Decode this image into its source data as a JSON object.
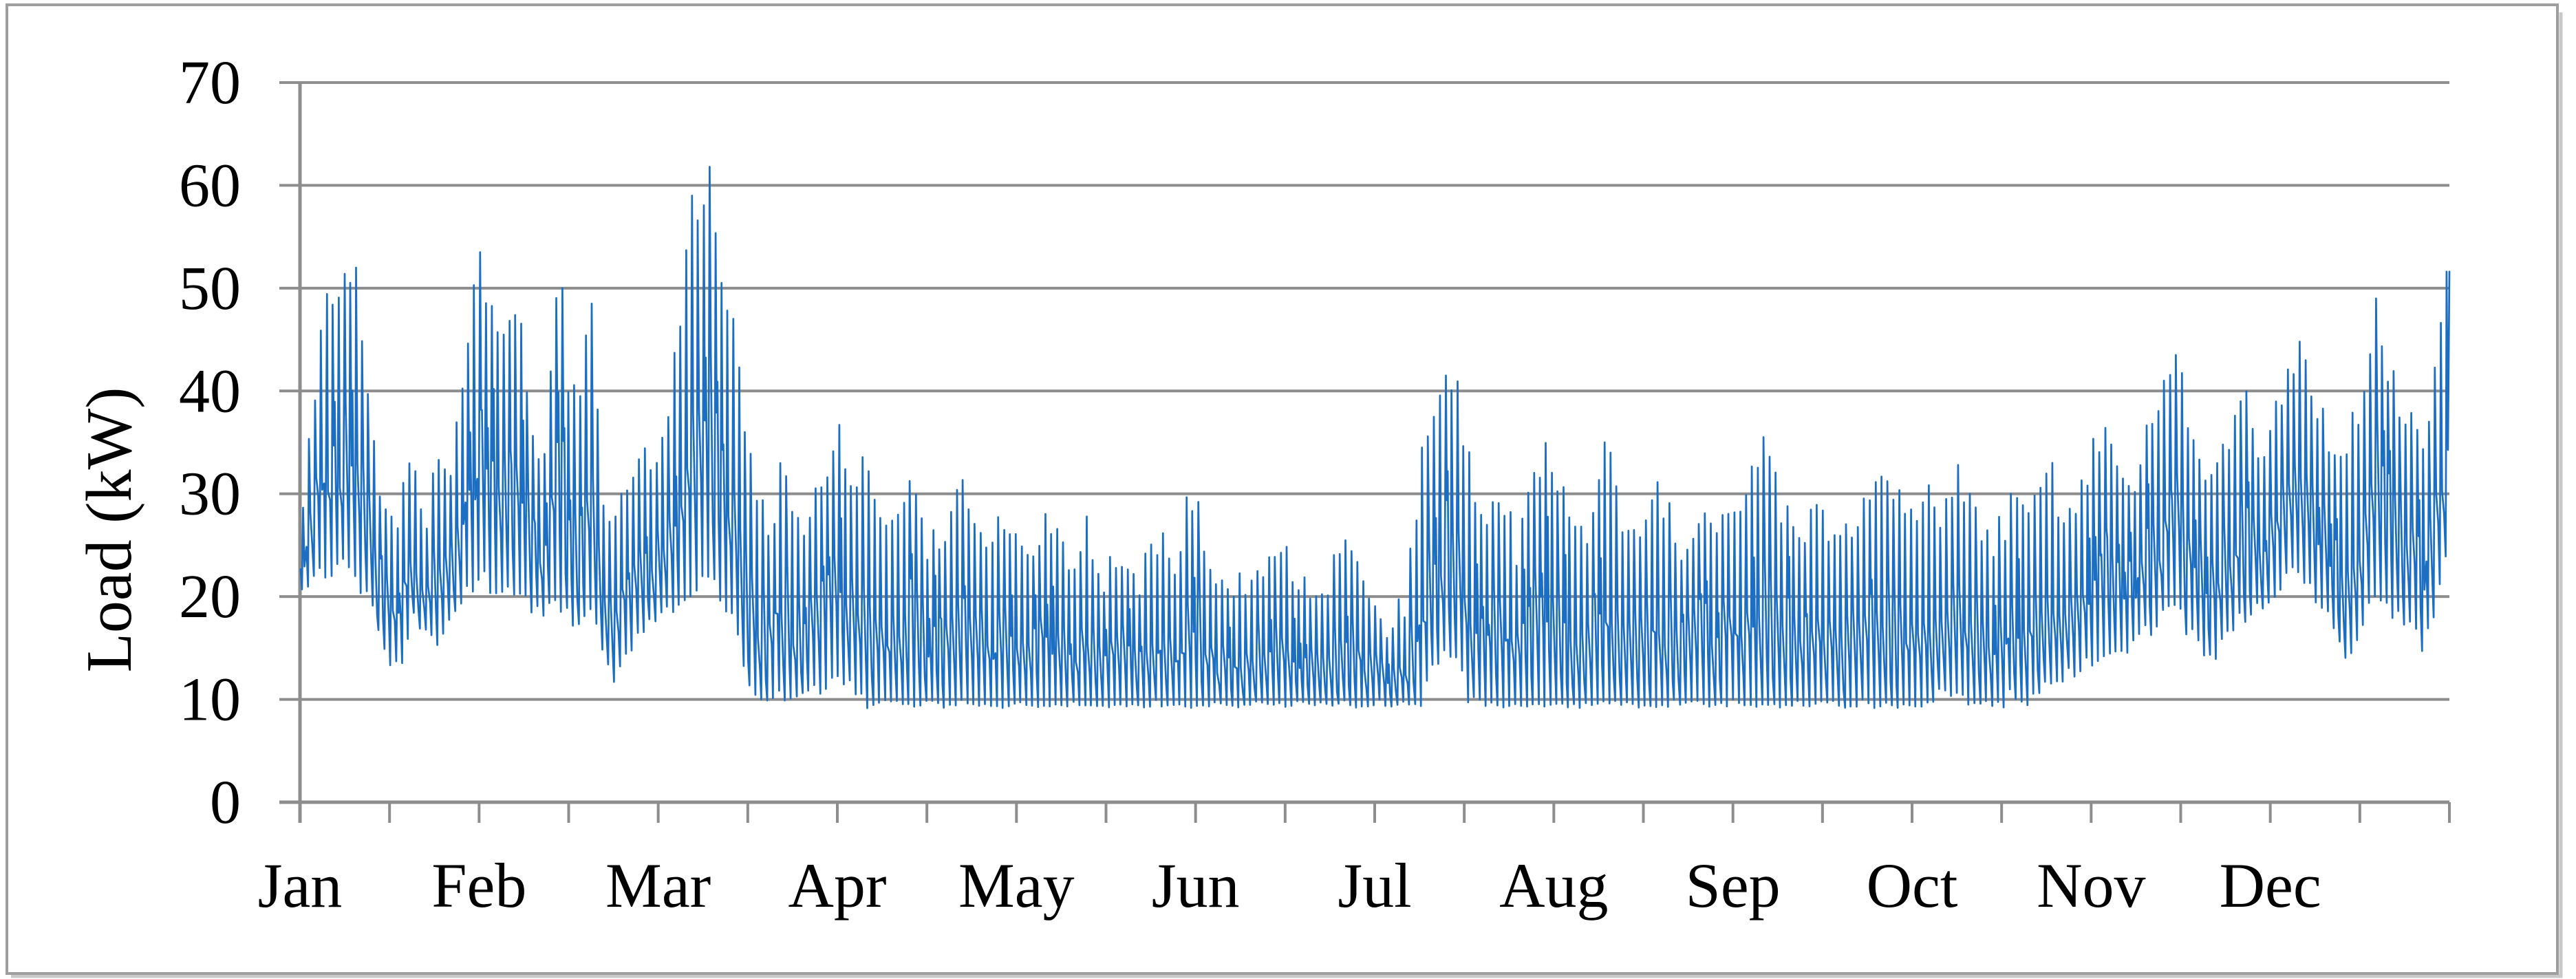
{
  "figure": {
    "kind": "annual load profile line chart",
    "title": ""
  },
  "style": {
    "background": "#FFFFFF",
    "line_color": "#1B6EC2",
    "grid_color": "#8D8D8D",
    "axis_color": "#8D8D8D",
    "tick_color": "#8D8D8D",
    "frame_border_color": "#9E9E9E",
    "frame_shadow_color": "#C9C9C9",
    "text_color": "#000000"
  },
  "chart_data": {
    "type": "line",
    "title": "",
    "xlabel": "",
    "ylabel": "Load (kW)",
    "ylim": [
      0,
      70
    ],
    "yticks": [
      0,
      10,
      20,
      30,
      40,
      50,
      60,
      70
    ],
    "grid": "horizontal gridlines at every 10 kW",
    "legend": "none",
    "x_axis": {
      "categories": [
        "Jan",
        "Feb",
        "Mar",
        "Apr",
        "May",
        "Jun",
        "Jul",
        "Aug",
        "Sep",
        "Oct",
        "Nov",
        "Dec"
      ],
      "tick_interval": "half month",
      "ticks_count": 25
    },
    "series": [
      {
        "name": "Load",
        "color": "#1B6EC2",
        "days": 365,
        "points_per_day": 4,
        "baseline_floor_kw": 9.2,
        "max_value_kw": 61.8,
        "min_value_kw": 9,
        "seed": 20180612,
        "envelope_day_lo_hi": [
          [
            0,
            21,
            30
          ],
          [
            2,
            22,
            40
          ],
          [
            4,
            22,
            48
          ],
          [
            7,
            23,
            50
          ],
          [
            9,
            22,
            52
          ],
          [
            11,
            20,
            38
          ],
          [
            13,
            17,
            30
          ],
          [
            15,
            13,
            26
          ],
          [
            17,
            14,
            30
          ],
          [
            19,
            18,
            32
          ],
          [
            21,
            16,
            28
          ],
          [
            23,
            15,
            33
          ],
          [
            25,
            18,
            31
          ],
          [
            27,
            20,
            40
          ],
          [
            29,
            21,
            50
          ],
          [
            31,
            22,
            50
          ],
          [
            33,
            20,
            44
          ],
          [
            35,
            21,
            47
          ],
          [
            37,
            20,
            46
          ],
          [
            39,
            19,
            34
          ],
          [
            41,
            18,
            32
          ],
          [
            43,
            19,
            48
          ],
          [
            45,
            18,
            38
          ],
          [
            47,
            17,
            40
          ],
          [
            49,
            19,
            47
          ],
          [
            51,
            14,
            28
          ],
          [
            53,
            12,
            26
          ],
          [
            55,
            14,
            30
          ],
          [
            57,
            16,
            33
          ],
          [
            59,
            17,
            34
          ],
          [
            61,
            18,
            35
          ],
          [
            63,
            19,
            42
          ],
          [
            65,
            20,
            52
          ],
          [
            67,
            21,
            58
          ],
          [
            69,
            22,
            61
          ],
          [
            71,
            20,
            52
          ],
          [
            73,
            18,
            46
          ],
          [
            75,
            13,
            36
          ],
          [
            77,
            10,
            30
          ],
          [
            79,
            10,
            26
          ],
          [
            81,
            11,
            32
          ],
          [
            83,
            10,
            28
          ],
          [
            85,
            10,
            25
          ],
          [
            87,
            11,
            30
          ],
          [
            89,
            11,
            33
          ],
          [
            91,
            12,
            35
          ],
          [
            93,
            11,
            32
          ],
          [
            95,
            10,
            33
          ],
          [
            97,
            9,
            28
          ],
          [
            100,
            9,
            26
          ],
          [
            103,
            9,
            30
          ],
          [
            106,
            9,
            24
          ],
          [
            109,
            9,
            27
          ],
          [
            112,
            9,
            31
          ],
          [
            115,
            9,
            25
          ],
          [
            118,
            9,
            28
          ],
          [
            121,
            9,
            26
          ],
          [
            124,
            9,
            25
          ],
          [
            127,
            9,
            28
          ],
          [
            130,
            9,
            22
          ],
          [
            133,
            9,
            26
          ],
          [
            136,
            9,
            21
          ],
          [
            139,
            9,
            24
          ],
          [
            142,
            9,
            22
          ],
          [
            145,
            9,
            26
          ],
          [
            148,
            9,
            24
          ],
          [
            151,
            9,
            30
          ],
          [
            154,
            9,
            22
          ],
          [
            157,
            9,
            20
          ],
          [
            160,
            9,
            22
          ],
          [
            163,
            9,
            21
          ],
          [
            166,
            9,
            26
          ],
          [
            169,
            9,
            22
          ],
          [
            172,
            9,
            20
          ],
          [
            175,
            9,
            23
          ],
          [
            178,
            9,
            26
          ],
          [
            181,
            9,
            21
          ],
          [
            184,
            9,
            17
          ],
          [
            187,
            9,
            19
          ],
          [
            190,
            9,
            34
          ],
          [
            192,
            13,
            39
          ],
          [
            194,
            15,
            41
          ],
          [
            196,
            14,
            40
          ],
          [
            198,
            10,
            33
          ],
          [
            200,
            9,
            26
          ],
          [
            203,
            9,
            29
          ],
          [
            206,
            9,
            25
          ],
          [
            209,
            9,
            31
          ],
          [
            212,
            9,
            34
          ],
          [
            215,
            9,
            27
          ],
          [
            218,
            9,
            25
          ],
          [
            221,
            9,
            35
          ],
          [
            224,
            9,
            28
          ],
          [
            227,
            9,
            25
          ],
          [
            230,
            9,
            31
          ],
          [
            233,
            9,
            26
          ],
          [
            236,
            9,
            24
          ],
          [
            239,
            9,
            28
          ],
          [
            242,
            9,
            27
          ],
          [
            245,
            9,
            29
          ],
          [
            248,
            9,
            35
          ],
          [
            251,
            9,
            28
          ],
          [
            254,
            9,
            26
          ],
          [
            257,
            9,
            29
          ],
          [
            260,
            9,
            24
          ],
          [
            263,
            9,
            27
          ],
          [
            266,
            9,
            31
          ],
          [
            269,
            9,
            33
          ],
          [
            272,
            9,
            28
          ],
          [
            275,
            9,
            30
          ],
          [
            278,
            10,
            28
          ],
          [
            281,
            10,
            33
          ],
          [
            284,
            9,
            27
          ],
          [
            287,
            9,
            25
          ],
          [
            290,
            10,
            28
          ],
          [
            293,
            10,
            27
          ],
          [
            296,
            11,
            33
          ],
          [
            299,
            12,
            28
          ],
          [
            302,
            13,
            31
          ],
          [
            305,
            14,
            36
          ],
          [
            308,
            15,
            34
          ],
          [
            311,
            15,
            31
          ],
          [
            314,
            17,
            38
          ],
          [
            316,
            18,
            41
          ],
          [
            318,
            19,
            43
          ],
          [
            320,
            17,
            37
          ],
          [
            322,
            15,
            33
          ],
          [
            324,
            14,
            31
          ],
          [
            326,
            15,
            35
          ],
          [
            328,
            17,
            37
          ],
          [
            330,
            18,
            38
          ],
          [
            332,
            19,
            35
          ],
          [
            334,
            20,
            36
          ],
          [
            336,
            21,
            38
          ],
          [
            338,
            22,
            43
          ],
          [
            340,
            21,
            44
          ],
          [
            342,
            20,
            38
          ],
          [
            344,
            19,
            36
          ],
          [
            346,
            15,
            33
          ],
          [
            348,
            14,
            36
          ],
          [
            350,
            17,
            39
          ],
          [
            352,
            20,
            49
          ],
          [
            354,
            19,
            41
          ],
          [
            356,
            18,
            39
          ],
          [
            358,
            17,
            37
          ],
          [
            360,
            15,
            35
          ],
          [
            362,
            18,
            42
          ],
          [
            364,
            23,
            51
          ]
        ],
        "spikes_day_value": [
          [
            9,
            52
          ],
          [
            30,
            53.5
          ],
          [
            44,
            50
          ],
          [
            49,
            48.5
          ],
          [
            66,
            59
          ],
          [
            69,
            61.8
          ],
          [
            75,
            36
          ],
          [
            190,
            34.5
          ],
          [
            194,
            41.5
          ],
          [
            221,
            35
          ],
          [
            248,
            35.5
          ],
          [
            281,
            32.8
          ],
          [
            297,
            33
          ],
          [
            316,
            41
          ],
          [
            318,
            43.5
          ],
          [
            339,
            44.8
          ],
          [
            352,
            49
          ],
          [
            364,
            51.6
          ]
        ]
      }
    ]
  }
}
